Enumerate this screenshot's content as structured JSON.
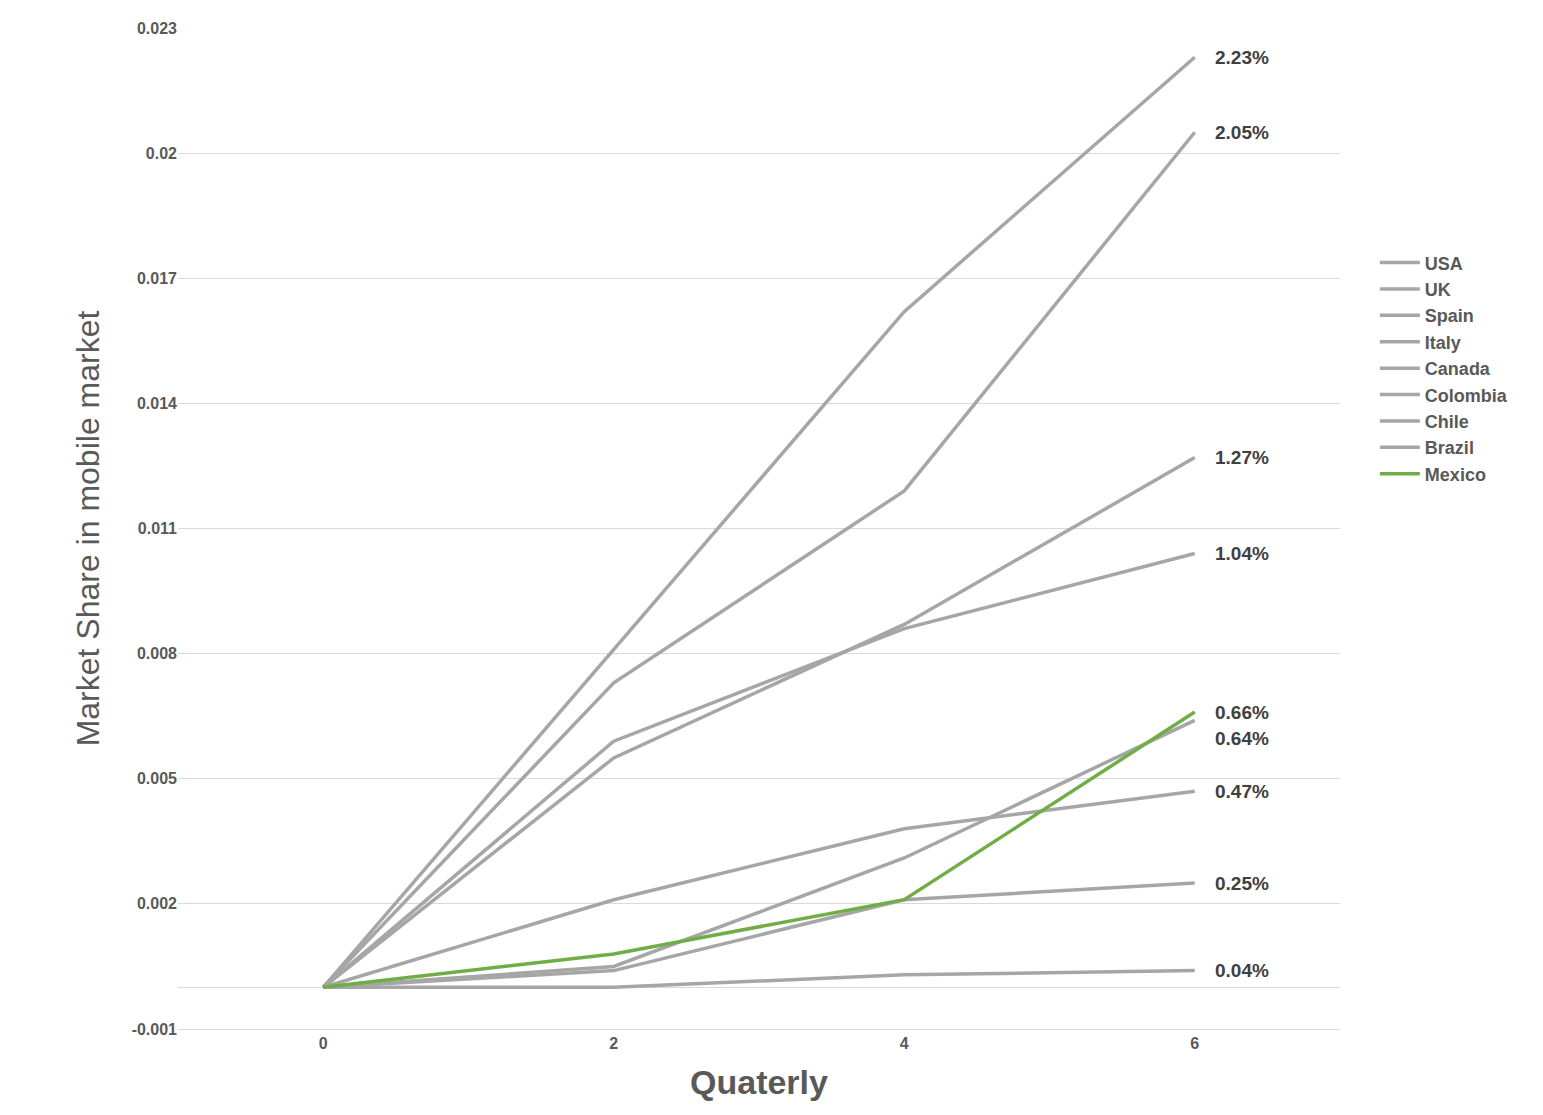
{
  "chart_data": {
    "type": "line",
    "x_label": "Quaterly",
    "y_label": "Market Share in mobile market",
    "x": [
      0,
      2,
      4,
      6
    ],
    "series": [
      {
        "name": "USA",
        "color": "#a6a6a6",
        "values": [
          0,
          0.0081,
          0.0162,
          0.0223
        ],
        "value_labels": [
          null,
          null,
          null,
          "2.23%"
        ]
      },
      {
        "name": "UK",
        "color": "#a6a6a6",
        "values": [
          0,
          0.0073,
          0.0119,
          0.0205
        ],
        "value_labels": [
          null,
          null,
          null,
          "2.05%"
        ]
      },
      {
        "name": "Spain",
        "color": "#a6a6a6",
        "values": [
          0,
          0.0055,
          0.0087,
          0.0127
        ],
        "value_labels": [
          null,
          null,
          null,
          "1.27%"
        ]
      },
      {
        "name": "Italy",
        "color": "#a6a6a6",
        "values": [
          0,
          0.0059,
          0.0086,
          0.0104
        ],
        "value_labels": [
          null,
          null,
          null,
          "1.04%"
        ]
      },
      {
        "name": "Canada",
        "color": "#a6a6a6",
        "values": [
          0,
          0.0005,
          0.0031,
          0.0064
        ],
        "value_labels": [
          null,
          null,
          null,
          "0.64%"
        ]
      },
      {
        "name": "Colombia",
        "color": "#a6a6a6",
        "values": [
          0,
          0.0021,
          0.0038,
          0.0047
        ],
        "value_labels": [
          null,
          null,
          null,
          "0.47%"
        ]
      },
      {
        "name": "Chile",
        "color": "#a6a6a6",
        "values": [
          0,
          0.0004,
          0.0021,
          0.0025
        ],
        "value_labels": [
          null,
          null,
          null,
          "0.25%"
        ]
      },
      {
        "name": "Brazil",
        "color": "#a6a6a6",
        "values": [
          0,
          0,
          0.0003,
          0.0004
        ],
        "value_labels": [
          null,
          null,
          null,
          "0.04%"
        ]
      },
      {
        "name": "Mexico",
        "color": "#70ad47",
        "values": [
          0,
          0.0008,
          0.0021,
          0.0066
        ],
        "value_labels": [
          null,
          null,
          null,
          "0.66%"
        ]
      }
    ],
    "xlim": [
      -1,
      7
    ],
    "xticks": [
      0,
      2,
      4,
      6
    ],
    "ylim": [
      -0.001,
      0.023
    ],
    "yticks": [
      -0.001,
      0.002,
      0.005,
      0.008,
      0.011,
      0.014,
      0.017,
      0.02,
      0.023
    ],
    "grid": true,
    "legend": "right"
  }
}
